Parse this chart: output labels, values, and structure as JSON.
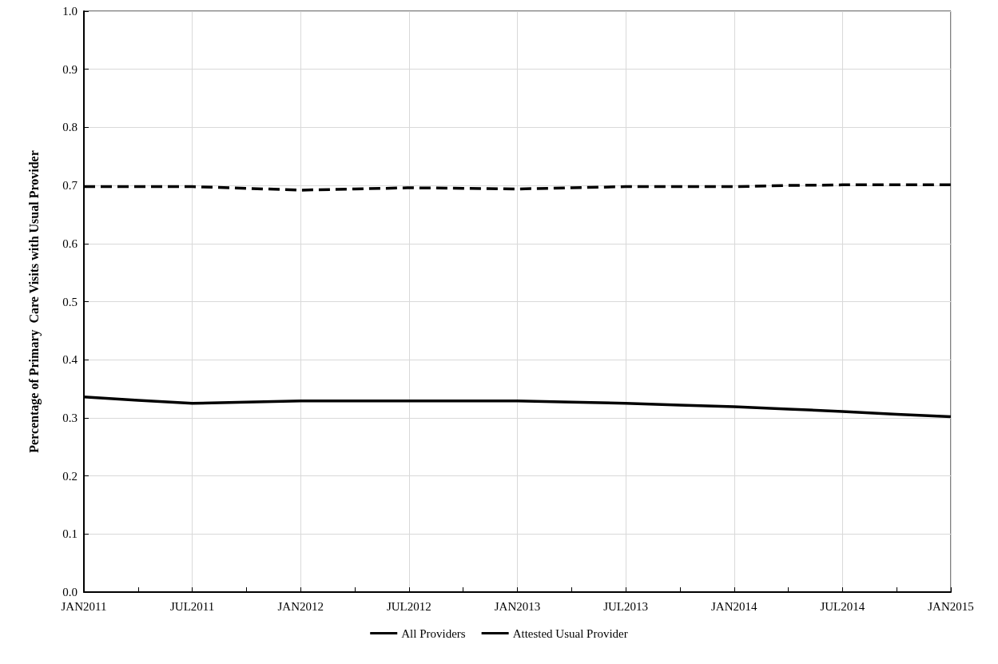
{
  "chart_data": {
    "type": "line",
    "ylabel": "Percentage of Primary  Care Visits with Usual Provider",
    "categories": [
      "JAN2011",
      null,
      "JUL2011",
      null,
      "JAN2012",
      null,
      "JUL2012",
      null,
      "JAN2013",
      null,
      "JUL2013",
      null,
      "JAN2014",
      null,
      "JUL2014",
      null,
      "JAN2015"
    ],
    "series": [
      {
        "name": "All Providers",
        "color": "#000000",
        "line_style": "solid",
        "values": [
          0.336,
          0.33,
          0.325,
          0.327,
          0.329,
          0.329,
          0.329,
          0.329,
          0.329,
          0.327,
          0.325,
          0.322,
          0.319,
          0.315,
          0.311,
          0.306,
          0.302
        ]
      },
      {
        "name": "Attested Usual Provider",
        "color": "#000000",
        "line_style": "dashed",
        "values": [
          0.698,
          0.698,
          0.698,
          0.695,
          0.692,
          0.694,
          0.696,
          0.695,
          0.694,
          0.696,
          0.698,
          0.698,
          0.698,
          0.7,
          0.701,
          0.701,
          0.701
        ]
      }
    ],
    "ylim": [
      0,
      1
    ],
    "yticks": [
      {
        "value": 0,
        "label": "0.0"
      },
      {
        "value": 0.1,
        "label": "0.1"
      },
      {
        "value": 0.2,
        "label": "0.2"
      },
      {
        "value": 0.3,
        "label": "0.3"
      },
      {
        "value": 0.4,
        "label": "0.4"
      },
      {
        "value": 0.5,
        "label": "0.5"
      },
      {
        "value": 0.6,
        "label": "0.6"
      },
      {
        "value": 0.7,
        "label": "0.7"
      },
      {
        "value": 0.8,
        "label": "0.8"
      },
      {
        "value": 0.9,
        "label": "0.9"
      },
      {
        "value": 1,
        "label": "1.0"
      }
    ],
    "grid": true,
    "legend": "bottom",
    "marker": "none"
  }
}
